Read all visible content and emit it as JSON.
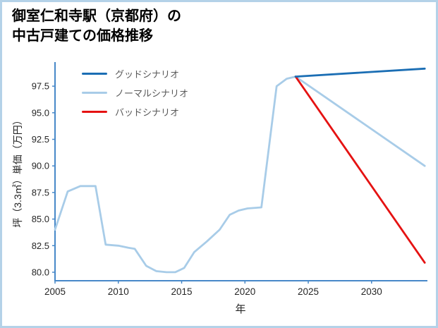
{
  "page": {
    "title_line1": "御室仁和寺駅（京都府）の",
    "title_line2": "中古戸建ての価格推移"
  },
  "chart_data": {
    "type": "line",
    "title": "御室仁和寺駅（京都府）の中古戸建ての価格推移",
    "xlabel": "年",
    "ylabel": "坪（3.3㎡）単価（万円）",
    "xlim": [
      2005,
      2034.3
    ],
    "ylim": [
      79.2,
      99.7
    ],
    "xticks": [
      2005,
      2010,
      2015,
      2020,
      2025,
      2030
    ],
    "yticks": [
      "80.0",
      "82.5",
      "85.0",
      "87.5",
      "90.0",
      "92.5",
      "95.0",
      "97.5"
    ],
    "grid": false,
    "legend_position": "upper-left",
    "axis_color": "#4788c8",
    "tick_label_color": "#262626",
    "legend_text_color": "#595959",
    "series": [
      {
        "name": "グッドシナリオ",
        "color": "#1b6eb4",
        "x": [
          2024,
          2034.2
        ],
        "y": [
          98.4,
          99.15
        ]
      },
      {
        "name": "ノーマルシナリオ",
        "color": "#a8cce8",
        "x": [
          2005,
          2006,
          2007,
          2008.2,
          2009,
          2010,
          2010.8,
          2011.3,
          2012.2,
          2013,
          2013.8,
          2014.5,
          2015.2,
          2016,
          2017,
          2018,
          2018.8,
          2019.5,
          2020.2,
          2021.3,
          2022.5,
          2023.3,
          2024,
          2034.2
        ],
        "y": [
          84.0,
          87.6,
          88.1,
          88.1,
          82.6,
          82.5,
          82.3,
          82.2,
          80.6,
          80.1,
          80.0,
          80.0,
          80.4,
          81.9,
          82.9,
          84.0,
          85.4,
          85.8,
          86.0,
          86.1,
          97.5,
          98.2,
          98.4,
          90.0
        ]
      },
      {
        "name": "バッドシナリオ",
        "color": "#e51212",
        "x": [
          2024,
          2034.2
        ],
        "y": [
          98.4,
          80.9
        ]
      }
    ]
  }
}
